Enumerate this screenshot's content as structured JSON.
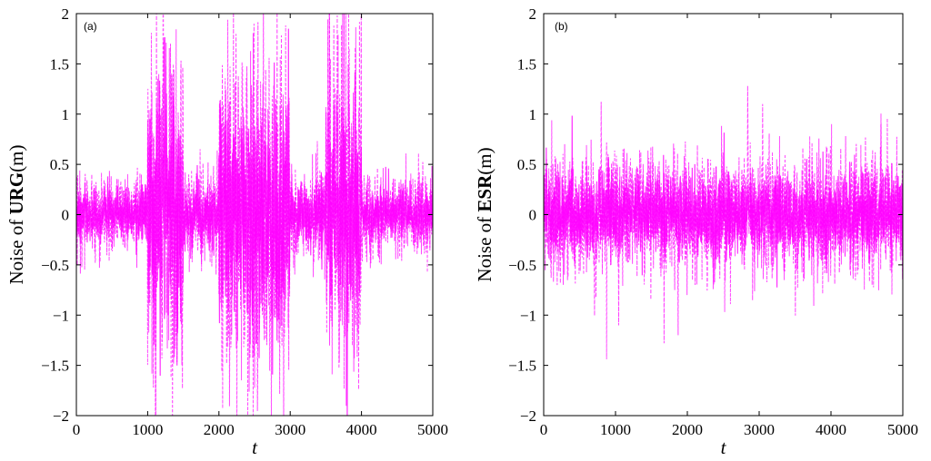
{
  "chart_data": [
    {
      "type": "line",
      "panel_label": "(a)",
      "xlabel": "t",
      "ylabel_parts": [
        "Noise of ",
        "URG",
        "(m)"
      ],
      "xlim": [
        0,
        5000
      ],
      "ylim": [
        -2,
        2
      ],
      "xticks": [
        0,
        1000,
        2000,
        3000,
        4000,
        5000
      ],
      "yticks": [
        2,
        1.5,
        1,
        0.5,
        0,
        -0.5,
        -1,
        -1.5,
        -2
      ],
      "ytick_labels": [
        "2",
        "1.5",
        "1",
        "0.5",
        "0",
        "−0.5",
        "−1",
        "−1.5",
        "−2"
      ],
      "grid": false,
      "line_color": "#ff00ff",
      "line_style": "dashed",
      "amplitude_envelope": [
        {
          "t_start": 0,
          "t_end": 1000,
          "amp": 0.35
        },
        {
          "t_start": 1000,
          "t_end": 1500,
          "amp": 1.6
        },
        {
          "t_start": 1500,
          "t_end": 2000,
          "amp": 0.45
        },
        {
          "t_start": 2000,
          "t_end": 3000,
          "amp": 1.5
        },
        {
          "t_start": 3000,
          "t_end": 3500,
          "amp": 0.45
        },
        {
          "t_start": 3500,
          "t_end": 4000,
          "amp": 1.6
        },
        {
          "t_start": 4000,
          "t_end": 5000,
          "amp": 0.35
        }
      ]
    },
    {
      "type": "line",
      "panel_label": "(b)",
      "xlabel": "t",
      "ylabel_parts": [
        "Noise of ",
        "ESR",
        "(m)"
      ],
      "xlim": [
        0,
        5000
      ],
      "ylim": [
        -2,
        2
      ],
      "xticks": [
        0,
        1000,
        2000,
        3000,
        4000,
        5000
      ],
      "yticks": [
        2,
        1.5,
        1,
        0.5,
        0,
        -0.5,
        -1,
        -1.5,
        -2
      ],
      "ytick_labels": [
        "2",
        "1.5",
        "1",
        "0.5",
        "0",
        "−0.5",
        "−1",
        "−1.5",
        "−2"
      ],
      "grid": false,
      "line_color": "#ff00ff",
      "line_style": "dashed",
      "amplitude_envelope": [
        {
          "t_start": 0,
          "t_end": 5000,
          "amp": 0.55
        }
      ]
    }
  ]
}
